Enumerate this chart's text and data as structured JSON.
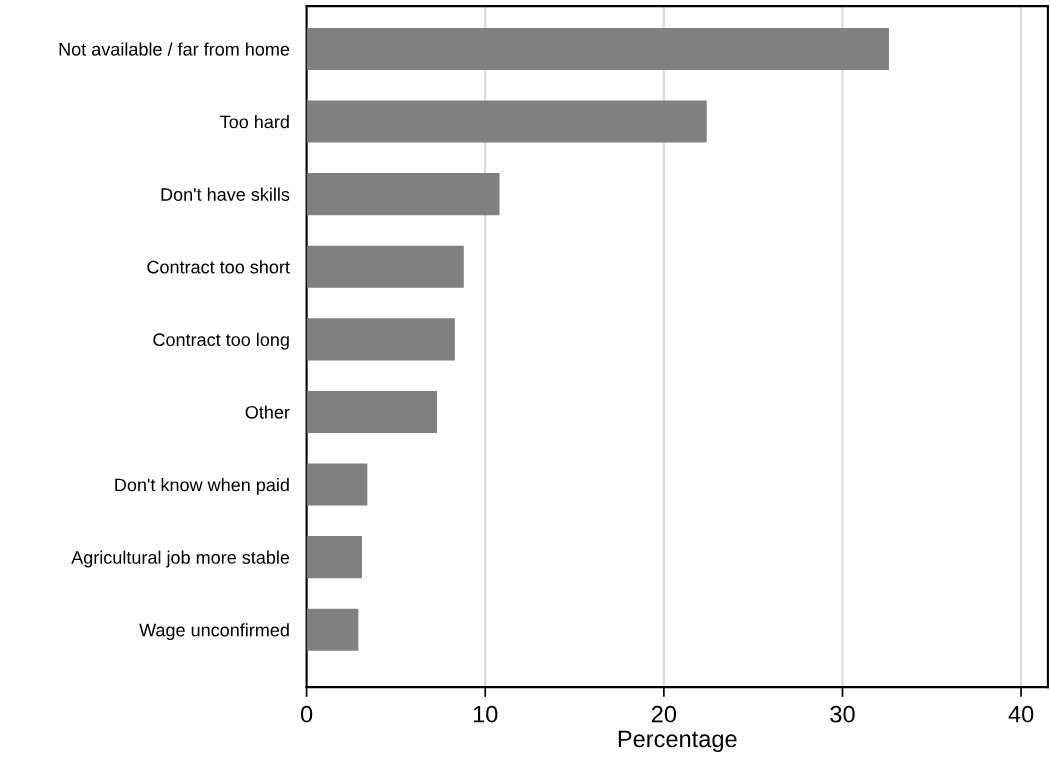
{
  "chart_data": {
    "type": "bar",
    "orientation": "horizontal",
    "xlabel": "Percentage",
    "categories": [
      "Not available / far from home",
      "Too hard",
      "Don't have skills",
      "Contract too short",
      "Contract too long",
      "Other",
      "Don't know when paid",
      "Agricultural job more stable",
      "Wage unconfirmed"
    ],
    "values": [
      32.6,
      22.4,
      10.8,
      8.8,
      8.3,
      7.3,
      3.4,
      3.1,
      2.9
    ],
    "color": "#808080",
    "xlim": [
      0,
      41.5
    ],
    "xticks": [
      0,
      10,
      20,
      30,
      40
    ],
    "grid": "x"
  }
}
